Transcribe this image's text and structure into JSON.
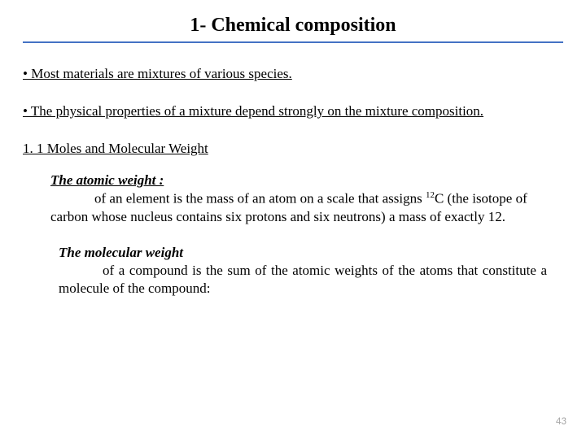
{
  "title": "1- Chemical composition",
  "title_underline_color": "#4472c4",
  "bullet1": "• Most materials are mixtures of various species.",
  "bullet2": "• The physical properties of a mixture depend strongly on the mixture composition.",
  "subsection": "1. 1 Moles and Molecular Weight",
  "atomic": {
    "term": "The atomic weight :",
    "body_pre": "of an element is the mass of an atom on a scale that assigns ",
    "sup": "12",
    "body_post": "C (the isotope of carbon whose nucleus contains six protons and six neutrons) a mass of exactly 12."
  },
  "molecular": {
    "term": "The molecular weight",
    "body": "of a compound is the sum of the atomic weights of the atoms that constitute a molecule of the compound:"
  },
  "page_number": "43",
  "page_number_color": "#a6a6a6",
  "background_color": "#ffffff",
  "text_color": "#000000",
  "title_fontsize": 24,
  "body_fontsize": 17,
  "pagenum_fontsize": 13
}
